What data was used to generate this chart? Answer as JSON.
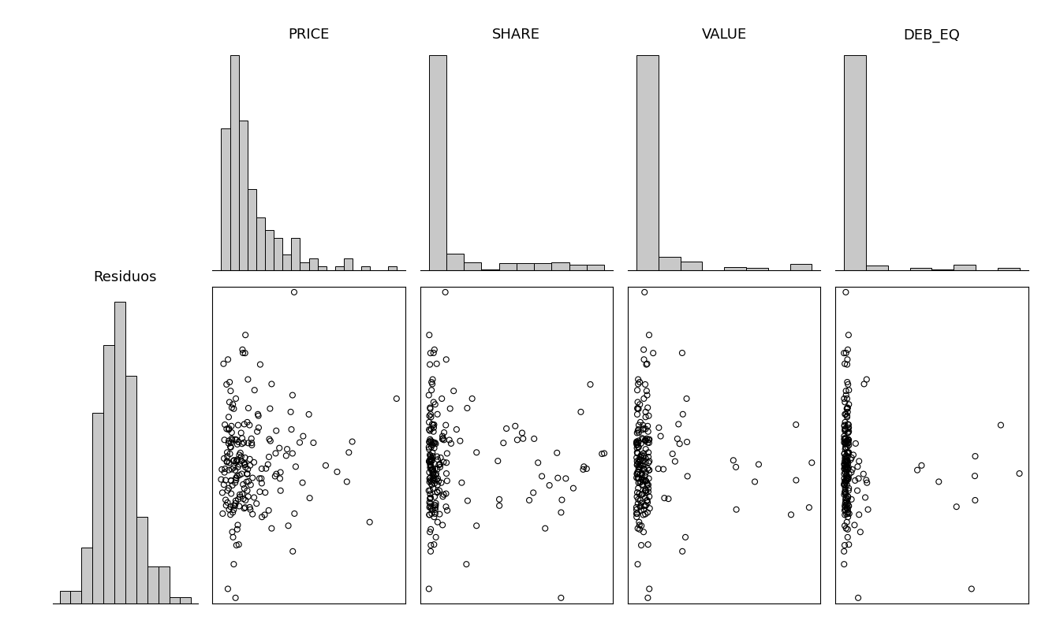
{
  "variables": [
    "PRICE",
    "SHARE",
    "VALUE",
    "DEB_EQ"
  ],
  "residuos_label": "Residuos",
  "hist_color": "#c8c8c8",
  "hist_edgecolor": "#000000",
  "scatter_facecolor": "none",
  "scatter_edgecolor": "#000000",
  "scatter_marker": "o",
  "scatter_size": 25,
  "scatter_linewidth": 0.8,
  "background_color": "#ffffff",
  "title_color": "#000000",
  "price_bins": 20,
  "share_bins": 10,
  "value_bins": 8,
  "debeq_bins": 8,
  "resid_bins": 12
}
